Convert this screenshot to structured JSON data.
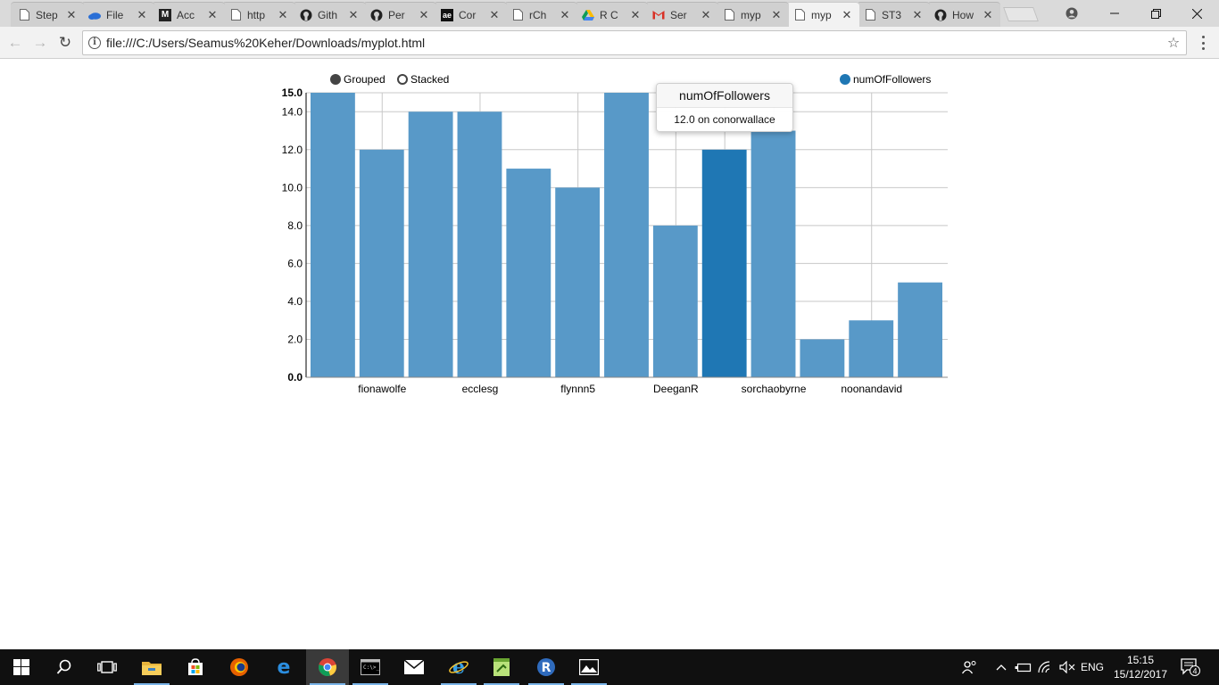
{
  "browser": {
    "tabs": [
      {
        "title": "Step",
        "icon": "page-icon",
        "active": false
      },
      {
        "title": "File",
        "icon": "onedrive-icon",
        "active": false
      },
      {
        "title": "Acc",
        "icon": "medium-icon",
        "active": false
      },
      {
        "title": "http",
        "icon": "page-icon",
        "active": false
      },
      {
        "title": "Gith",
        "icon": "github-icon",
        "active": false
      },
      {
        "title": "Per",
        "icon": "github-icon",
        "active": false
      },
      {
        "title": "Cor",
        "icon": "ae-icon",
        "active": false
      },
      {
        "title": "rCh",
        "icon": "page-icon",
        "active": false
      },
      {
        "title": "R C",
        "icon": "drive-icon",
        "active": false
      },
      {
        "title": "Ser",
        "icon": "gmail-icon",
        "active": false
      },
      {
        "title": "myp",
        "icon": "page-icon",
        "active": false
      },
      {
        "title": "myp",
        "icon": "page-icon",
        "active": true
      },
      {
        "title": "ST3",
        "icon": "page-icon",
        "active": false
      },
      {
        "title": "How",
        "icon": "github-icon",
        "active": false
      }
    ],
    "tab_close_glyph": "✕",
    "address": "file:///C:/Users/Seamus%20Keher/Downloads/myplot.html"
  },
  "chart_controls": {
    "grouped_label": "Grouped",
    "stacked_label": "Stacked",
    "selected_mode": "Grouped"
  },
  "tooltip": {
    "title": "numOfFollowers",
    "body": "12.0 on conorwallace"
  },
  "chart_data": {
    "type": "bar",
    "title": "",
    "xlabel": "",
    "ylabel": "",
    "categories": [
      "",
      "fionawolfe",
      "",
      "ecclesg",
      "",
      "flynnn5",
      "",
      "DeeganR",
      "conorwallace",
      "sorchaobyrne",
      "",
      "noonandavid",
      ""
    ],
    "x_tick_labels_shown": [
      "fionawolfe",
      "ecclesg",
      "flynnn5",
      "DeeganR",
      "sorchaobyrne",
      "noonandavid"
    ],
    "series": [
      {
        "name": "numOfFollowers",
        "values": [
          15,
          12,
          14,
          14,
          11,
          10,
          15,
          8,
          12,
          13,
          2,
          3,
          5
        ]
      }
    ],
    "highlighted_index": 8,
    "y_ticks": [
      "0.0",
      "2.0",
      "4.0",
      "6.0",
      "8.0",
      "10.0",
      "12.0",
      "14.0",
      "15.0"
    ],
    "ylim": [
      0,
      15
    ],
    "grid": true,
    "legend_position": "top-right",
    "colors": {
      "bar": "#5899c8",
      "bar_highlight": "#1f77b4",
      "grid": "#c8c8c8"
    }
  },
  "taskbar": {
    "apps": [
      "start-icon",
      "search-icon",
      "task-view-icon",
      "file-explorer-icon",
      "store-icon",
      "firefox-icon",
      "edge-icon",
      "chrome-icon",
      "cmd-icon",
      "mail-icon",
      "ie-icon",
      "notepad-plus-icon",
      "r-icon",
      "photos-icon"
    ],
    "language": "ENG",
    "time": "15:15",
    "date": "15/12/2017",
    "notification_count": "4"
  }
}
